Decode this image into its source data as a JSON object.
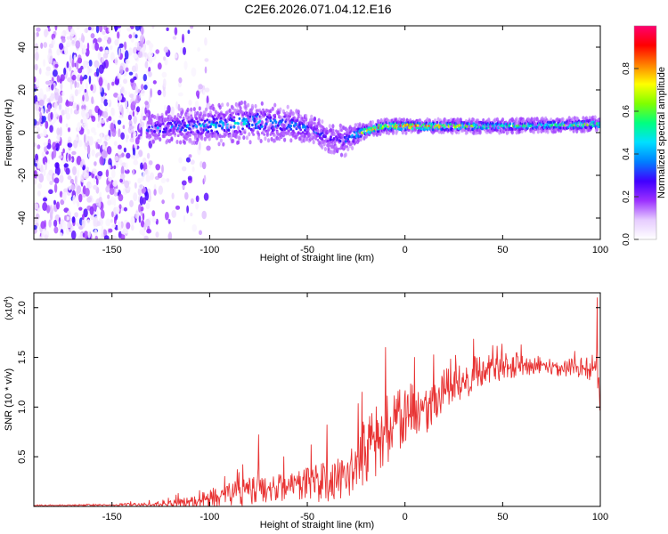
{
  "title": "C2E6.2026.071.04.12.E16",
  "chart_data": [
    {
      "type": "heatmap",
      "xlabel": "Height of straight line (km)",
      "ylabel": "Frequency (Hz)",
      "xlim": [
        -190,
        100
      ],
      "ylim": [
        -50,
        50
      ],
      "xticks": [
        -150,
        -100,
        -50,
        0,
        50,
        100
      ],
      "yticks": [
        -40,
        -20,
        0,
        20,
        40
      ],
      "colorbar": {
        "label": "Normalized spectral amplitude",
        "range": [
          0,
          1
        ],
        "ticks": [
          0.0,
          0.2,
          0.4,
          0.6,
          0.8
        ],
        "tick_labels": [
          "0.0",
          "0.2",
          "0.4",
          "0.6",
          "0.8"
        ],
        "colormap": [
          "#ffffff",
          "#e6ccff",
          "#9b30ff",
          "#4000ff",
          "#0080ff",
          "#00e0ff",
          "#00ff80",
          "#80ff00",
          "#ffff00",
          "#ff8000",
          "#ff0000",
          "#ff0070"
        ]
      },
      "ridge": {
        "x": [
          -130,
          -110,
          -90,
          -75,
          -60,
          -50,
          -40,
          -32,
          -25,
          -20,
          -15,
          -10,
          0,
          50,
          100
        ],
        "freq": [
          2,
          3,
          4,
          5,
          4,
          2,
          -2,
          -4,
          -1,
          1,
          2,
          3,
          3,
          3,
          4
        ],
        "half_width": [
          4,
          5,
          6,
          6,
          5,
          4,
          4,
          5,
          3,
          2,
          2,
          2,
          2,
          2,
          2
        ],
        "peak_amplitude": [
          0.35,
          0.4,
          0.45,
          0.45,
          0.4,
          0.35,
          0.3,
          0.3,
          0.5,
          0.85,
          0.85,
          0.75,
          0.9,
          0.55,
          0.65
        ]
      },
      "noise_region": {
        "x_range": [
          -190,
          -130
        ],
        "freq_range": [
          -50,
          50
        ],
        "amplitude": [
          0.02,
          0.3
        ]
      }
    },
    {
      "type": "line",
      "xlabel": "Height of straight line (km)",
      "ylabel": "SNR (10 * v/v)",
      "scale_label": "(x10",
      "scale_exponent": "4",
      "xlim": [
        -190,
        100
      ],
      "ylim": [
        0,
        2.15
      ],
      "xticks": [
        -150,
        -100,
        -50,
        0,
        50,
        100
      ],
      "yticks": [
        0.5,
        1.0,
        1.5,
        2.0
      ],
      "ytick_labels": [
        "0.5",
        "1.0",
        "1.5",
        "2.0"
      ],
      "color": "#e83333",
      "trend": {
        "x": [
          -190,
          -150,
          -130,
          -110,
          -100,
          -90,
          -80,
          -70,
          -60,
          -50,
          -40,
          -30,
          -20,
          -10,
          0,
          10,
          20,
          30,
          40,
          50,
          60,
          70,
          80,
          90,
          95,
          98,
          100
        ],
        "y": [
          0.01,
          0.015,
          0.02,
          0.04,
          0.08,
          0.12,
          0.15,
          0.18,
          0.2,
          0.22,
          0.26,
          0.32,
          0.55,
          0.75,
          0.9,
          1.0,
          1.12,
          1.26,
          1.38,
          1.42,
          1.42,
          1.42,
          1.4,
          1.4,
          1.38,
          1.4,
          1.0
        ]
      },
      "spikes": [
        {
          "x": -75,
          "y": 0.72
        },
        {
          "x": -62,
          "y": 0.5
        },
        {
          "x": -48,
          "y": 0.62
        },
        {
          "x": -40,
          "y": 0.82
        },
        {
          "x": -22,
          "y": 1.15
        },
        {
          "x": -10,
          "y": 1.6
        },
        {
          "x": 5,
          "y": 1.5
        },
        {
          "x": 45,
          "y": 1.62
        },
        {
          "x": 98.5,
          "y": 2.1
        }
      ],
      "noise_amplitude": [
        0.005,
        0.01,
        0.02,
        0.06,
        0.08,
        0.1,
        0.12,
        0.12,
        0.12,
        0.14,
        0.18,
        0.22,
        0.3,
        0.3,
        0.28,
        0.25,
        0.22,
        0.18,
        0.14,
        0.12,
        0.1,
        0.08,
        0.08,
        0.08,
        0.1,
        0.15,
        0.2
      ]
    }
  ]
}
